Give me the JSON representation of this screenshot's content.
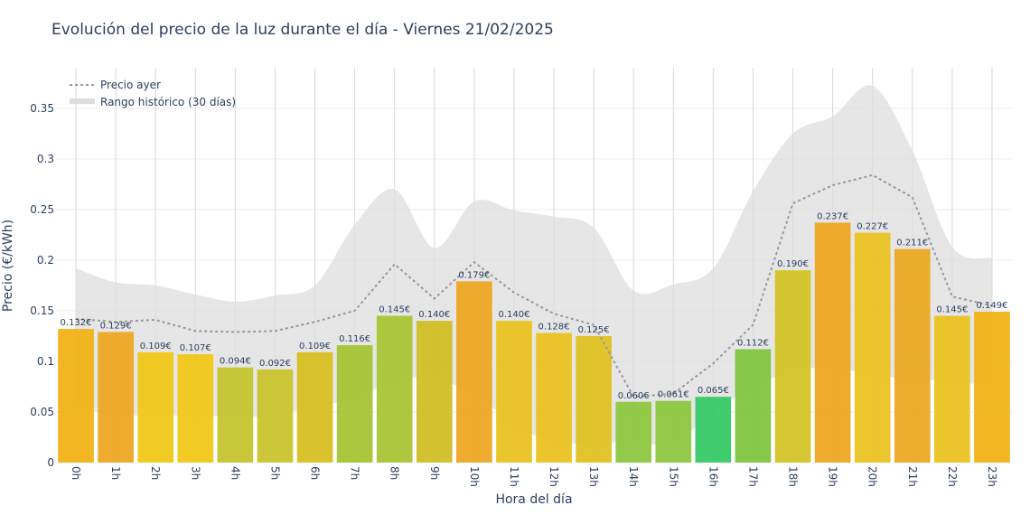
{
  "chart_data": {
    "type": "bar",
    "title": "Evolución del precio de la luz durante el día - Viernes 21/02/2025",
    "xlabel": "Hora del día",
    "ylabel": "Precio (€/kWh)",
    "ylim": [
      0,
      0.39
    ],
    "yticks": [
      0,
      0.05,
      0.1,
      0.15,
      0.2,
      0.25,
      0.3,
      0.35
    ],
    "ytick_labels": [
      "0",
      "0.05",
      "0.1",
      "0.15",
      "0.2",
      "0.25",
      "0.3",
      "0.35"
    ],
    "categories": [
      "0h",
      "1h",
      "2h",
      "3h",
      "4h",
      "5h",
      "6h",
      "7h",
      "8h",
      "9h",
      "10h",
      "11h",
      "12h",
      "13h",
      "14h",
      "15h",
      "16h",
      "17h",
      "18h",
      "19h",
      "20h",
      "21h",
      "22h",
      "23h"
    ],
    "values": [
      0.132,
      0.129,
      0.109,
      0.107,
      0.094,
      0.092,
      0.109,
      0.116,
      0.145,
      0.14,
      0.179,
      0.14,
      0.128,
      0.125,
      0.06,
      0.061,
      0.065,
      0.112,
      0.19,
      0.237,
      0.227,
      0.211,
      0.145,
      0.149
    ],
    "value_labels": [
      "0.132€",
      "0.129€",
      "0.109€",
      "0.107€",
      "0.094€",
      "0.092€",
      "0.109€",
      "0.116€",
      "0.145€",
      "0.140€",
      "0.179€",
      "0.140€",
      "0.128€",
      "0.125€",
      "0.060€",
      "0.061€",
      "0.065€",
      "0.112€",
      "0.190€",
      "0.237€",
      "0.227€",
      "0.211€",
      "0.145€",
      "0.149€"
    ],
    "bar_colors": [
      "#f0b010",
      "#eda51e",
      "#f0c712",
      "#f0c712",
      "#c4c22a",
      "#c8c22a",
      "#d6bd1c",
      "#a4c332",
      "#a8c332",
      "#cfbd22",
      "#eda51e",
      "#e8c21c",
      "#e8c21c",
      "#e0bf1e",
      "#8cc63c",
      "#8cc63c",
      "#34c865",
      "#7ec33c",
      "#d2c322",
      "#eda51e",
      "#ebc21e",
      "#eba71e",
      "#e8c21c",
      "#f0b010"
    ],
    "series": [
      {
        "name": "Precio ayer",
        "style": "dotted-line",
        "color": "#999999",
        "values": [
          0.142,
          0.139,
          0.141,
          0.13,
          0.129,
          0.13,
          0.139,
          0.15,
          0.196,
          0.162,
          0.198,
          0.168,
          0.147,
          0.136,
          0.065,
          0.068,
          0.098,
          0.136,
          0.256,
          0.274,
          0.284,
          0.262,
          0.164,
          0.155
        ]
      },
      {
        "name": "Rango histórico (30 días)",
        "style": "band",
        "color": "#dddddd",
        "upper": [
          0.192,
          0.178,
          0.175,
          0.166,
          0.159,
          0.165,
          0.175,
          0.235,
          0.27,
          0.212,
          0.258,
          0.249,
          0.243,
          0.232,
          0.17,
          0.176,
          0.192,
          0.268,
          0.325,
          0.342,
          0.372,
          0.308,
          0.213,
          0.202
        ],
        "lower": [
          0.055,
          0.047,
          0.047,
          0.046,
          0.046,
          0.046,
          0.057,
          0.062,
          0.082,
          0.082,
          0.068,
          0.038,
          0.02,
          0.02,
          0.02,
          0.02,
          0.05,
          0.075,
          0.09,
          0.094,
          0.086,
          0.083,
          0.08,
          0.076
        ]
      }
    ],
    "legend_position": "top-left",
    "grid": true
  }
}
